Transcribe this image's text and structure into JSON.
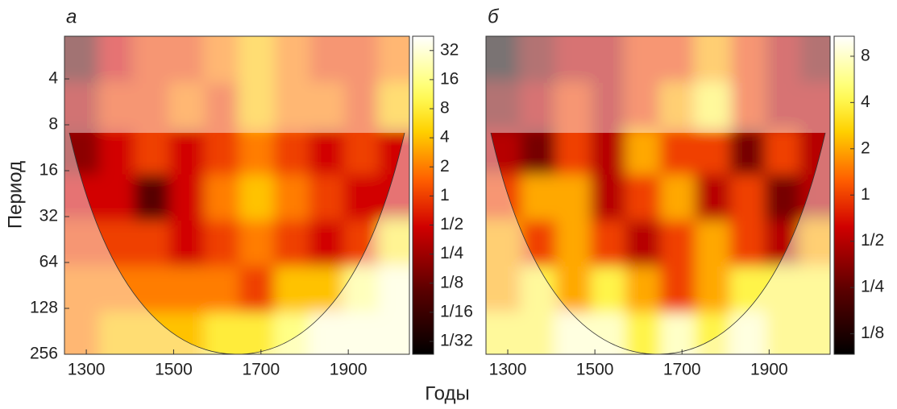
{
  "figure": {
    "xlabel": "Годы",
    "ylabel": "Период"
  },
  "chart_data": [
    {
      "type": "heatmap",
      "title": "а",
      "x": [
        1290,
        1370,
        1450,
        1530,
        1610,
        1690,
        1770,
        1850,
        1930,
        2010
      ],
      "y": [
        3,
        6,
        12,
        24,
        48,
        96,
        192
      ],
      "z": [
        [
          0.1,
          0.5,
          1,
          1,
          2,
          4,
          2,
          1,
          1,
          2
        ],
        [
          0.3,
          1,
          1,
          2,
          1,
          4,
          2,
          2,
          1,
          4
        ],
        [
          0.2,
          0.5,
          1,
          0.5,
          1,
          2,
          1,
          0.5,
          1,
          0.5
        ],
        [
          0.5,
          0.5,
          0.1,
          0.5,
          2,
          4,
          2,
          1,
          0.5,
          0.5
        ],
        [
          1,
          1,
          1,
          0.5,
          1,
          2,
          1,
          0.5,
          1,
          8
        ],
        [
          2,
          2,
          2,
          2,
          2,
          1,
          4,
          4,
          16,
          32
        ],
        [
          2,
          4,
          4,
          4,
          8,
          8,
          16,
          32,
          32,
          32
        ]
      ],
      "xlim": [
        1250,
        2040
      ],
      "xticks": [
        1300,
        1500,
        1700,
        1900
      ],
      "ylim": [
        2.1,
        256
      ],
      "yticks": [
        4,
        8,
        16,
        32,
        64,
        128,
        256
      ],
      "ylog": true,
      "yreversed": true,
      "clim": [
        0.023,
        45
      ],
      "cticks": [
        32,
        16,
        8,
        4,
        2,
        1,
        {
          "value": 0.5,
          "label": "1/2"
        },
        {
          "value": 0.25,
          "label": "1/4"
        },
        {
          "value": 0.125,
          "label": "1/8"
        },
        {
          "value": 0.0625,
          "label": "1/16"
        },
        {
          "value": 0.03125,
          "label": "1/32"
        }
      ]
    },
    {
      "type": "heatmap",
      "title": "б",
      "x": [
        1290,
        1370,
        1450,
        1530,
        1610,
        1690,
        1770,
        1850,
        1930,
        2010
      ],
      "y": [
        3,
        6,
        12,
        24,
        48,
        96,
        192
      ],
      "z": [
        [
          0.1,
          0.3,
          0.5,
          0.5,
          1,
          1,
          2,
          1,
          0.5,
          0.3
        ],
        [
          0.3,
          0.5,
          1,
          0.5,
          1,
          2,
          4,
          1,
          0.5,
          0.5
        ],
        [
          0.5,
          0.3,
          1,
          0.5,
          2,
          1,
          1,
          0.3,
          1,
          0.5
        ],
        [
          1,
          2,
          2,
          0.5,
          1,
          2,
          0.5,
          1,
          0.3,
          0.5
        ],
        [
          2,
          1,
          2,
          1,
          0.5,
          1,
          2,
          1,
          0.5,
          2
        ],
        [
          2,
          4,
          2,
          4,
          2,
          1,
          2,
          4,
          4,
          4
        ],
        [
          4,
          4,
          8,
          8,
          4,
          8,
          4,
          8,
          4,
          4
        ]
      ],
      "xlim": [
        1250,
        2040
      ],
      "xticks": [
        1300,
        1500,
        1700,
        1900
      ],
      "ylim": [
        2.1,
        256
      ],
      "ylog": true,
      "yreversed": true,
      "clim": [
        0.092,
        10.8
      ],
      "cticks": [
        8,
        4,
        2,
        1,
        {
          "value": 0.5,
          "label": "1/2"
        },
        {
          "value": 0.25,
          "label": "1/4"
        },
        {
          "value": 0.125,
          "label": "1/8"
        }
      ]
    }
  ]
}
